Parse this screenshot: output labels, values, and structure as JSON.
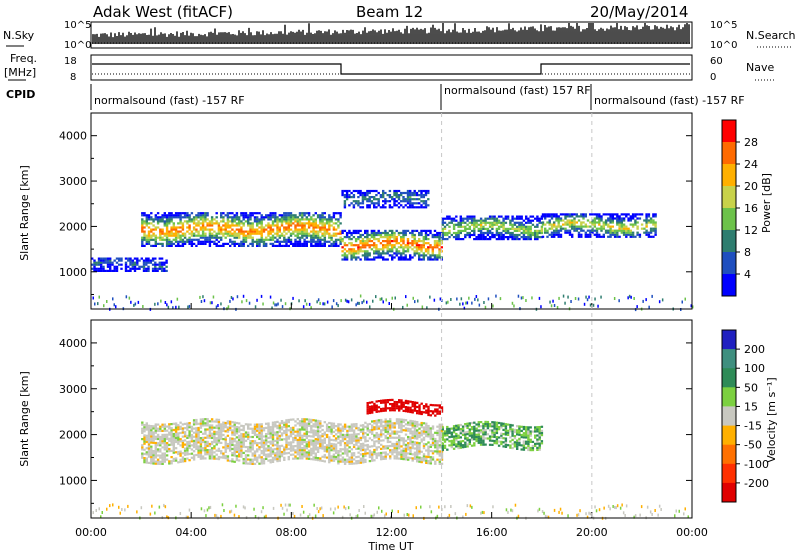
{
  "header": {
    "station": "Adak West (fitACF)",
    "beam": "Beam 12",
    "date": "20/May/2014"
  },
  "strips": {
    "noise": {
      "left_label": "N.Sky",
      "right_label": "N.Search",
      "left_ticks": [
        "10^5",
        "10^0"
      ],
      "right_ticks": [
        "10^5",
        "10^0"
      ]
    },
    "freq": {
      "left_label": "Freq.",
      "left_unit": "[MHz]",
      "right_label": "Nave",
      "left_ticks": [
        "18",
        "8"
      ],
      "right_ticks": [
        "60",
        "0"
      ]
    },
    "cpid": {
      "label": "CPID",
      "segments": [
        {
          "text": "normalsound (fast) -157 RF",
          "start_hour": 0
        },
        {
          "text": "normalsound (fast) 157 RF",
          "start_hour": 14
        },
        {
          "text": "normalsound (fast) -157 RF",
          "start_hour": 20
        }
      ]
    }
  },
  "chart_data": [
    {
      "type": "heatmap",
      "name": "power",
      "ylabel": "Slant Range [km]",
      "x_range_hours": [
        0,
        24
      ],
      "ylim": [
        180,
        4500
      ],
      "yticks": [
        1000,
        2000,
        3000,
        4000
      ],
      "colorbar": {
        "label": "Power [dB]",
        "ticks": [
          "4",
          "8",
          "12",
          "16",
          "20",
          "24",
          "28"
        ],
        "colors": [
          "#0000ff",
          "#1f4fbf",
          "#2e7d6f",
          "#6cc24a",
          "#c8d24a",
          "#ffb000",
          "#ff6a00",
          "#ff0000"
        ]
      },
      "echo_bands": [
        {
          "hours": [
            2,
            10
          ],
          "range_km": [
            1550,
            2300
          ],
          "peak_db": 26
        },
        {
          "hours": [
            10,
            14
          ],
          "range_km": [
            1250,
            1900
          ],
          "peak_db": 28
        },
        {
          "hours": [
            14,
            18
          ],
          "range_km": [
            1700,
            2200
          ],
          "peak_db": 18
        },
        {
          "hours": [
            18,
            22.5
          ],
          "range_km": [
            1750,
            2250
          ],
          "peak_db": 20
        },
        {
          "hours": [
            0,
            3
          ],
          "range_km": [
            1000,
            1300
          ],
          "peak_db": 8
        },
        {
          "hours": [
            10,
            13.5
          ],
          "range_km": [
            2400,
            2800
          ],
          "peak_db": 10
        }
      ]
    },
    {
      "type": "heatmap",
      "name": "velocity",
      "ylabel": "Slant Range [km]",
      "xlabel": "Time UT",
      "x_range_hours": [
        0,
        24
      ],
      "xticks": [
        "00:00",
        "04:00",
        "08:00",
        "12:00",
        "16:00",
        "20:00",
        "00:00"
      ],
      "ylim": [
        180,
        4500
      ],
      "yticks": [
        1000,
        2000,
        3000,
        4000
      ],
      "colorbar": {
        "label": "Velocity [m s⁻¹]",
        "ticks": [
          "200",
          "100",
          "50",
          "15",
          "-15",
          "-50",
          "-100",
          "-200"
        ],
        "colors": [
          "#2020c0",
          "#3f8f7f",
          "#2e8b57",
          "#7cd040",
          "#c8c8c0",
          "#ffb000",
          "#ff7000",
          "#ff3000",
          "#e00000"
        ]
      },
      "features": [
        {
          "hours": [
            2,
            14
          ],
          "range_km": [
            1400,
            2300
          ],
          "velocity_ms": 0
        },
        {
          "hours": [
            14,
            18
          ],
          "range_km": [
            1700,
            2200
          ],
          "velocity_ms": 30
        },
        {
          "hours": [
            11,
            14
          ],
          "range_km": [
            2450,
            2700
          ],
          "velocity_ms": -180
        }
      ]
    }
  ]
}
